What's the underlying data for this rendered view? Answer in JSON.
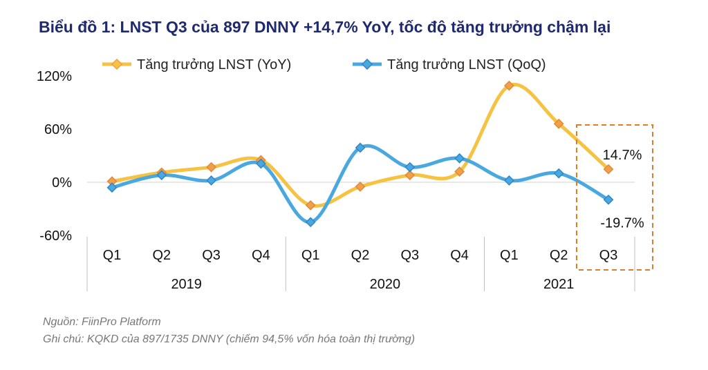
{
  "header": {
    "title": "Biểu đồ 1: LNST Q3 của 897 DNNY +14,7% YoY, tốc độ tăng trưởng chậm lại"
  },
  "colors": {
    "yoy": "#f5c242",
    "yoy_marker": "#f0a04b",
    "qoq": "#4aa8e0",
    "qoq_marker": "#2f86c8",
    "highlight_box": "#e07b2a"
  },
  "chart_data": {
    "type": "line",
    "title": "Biểu đồ 1: LNST Q3 của 897 DNNY +14,7% YoY, tốc độ tăng trưởng chậm lại",
    "categories": [
      "Q1",
      "Q2",
      "Q3",
      "Q4",
      "Q1",
      "Q2",
      "Q3",
      "Q4",
      "Q1",
      "Q2",
      "Q3"
    ],
    "groups": [
      {
        "label": "2019",
        "count": 4
      },
      {
        "label": "2020",
        "count": 4
      },
      {
        "label": "2021",
        "count": 3
      }
    ],
    "series": [
      {
        "name": "Tăng trưởng LNST (YoY)",
        "values": [
          1,
          11,
          17,
          25,
          -26,
          -5,
          8,
          12,
          109,
          66,
          14.7
        ]
      },
      {
        "name": "Tăng trưởng LNST (QoQ)",
        "values": [
          -6,
          8,
          2,
          21,
          -45,
          39,
          17,
          27,
          2,
          10,
          -19.7
        ]
      }
    ],
    "yticks": [
      "120%",
      "60%",
      "0%",
      "-60%"
    ],
    "ylim": [
      -60,
      120
    ],
    "data_labels": [
      {
        "series": 0,
        "index": 10,
        "text": "14.7%"
      },
      {
        "series": 1,
        "index": 10,
        "text": "-19.7%"
      }
    ],
    "legend": "top",
    "grid": false
  },
  "footer": {
    "source": "Nguồn: FiinPro Platform",
    "note": "Ghi chú: KQKD của 897/1735 DNNY (chiếm 94,5% vốn hóa toàn thị trường)"
  }
}
